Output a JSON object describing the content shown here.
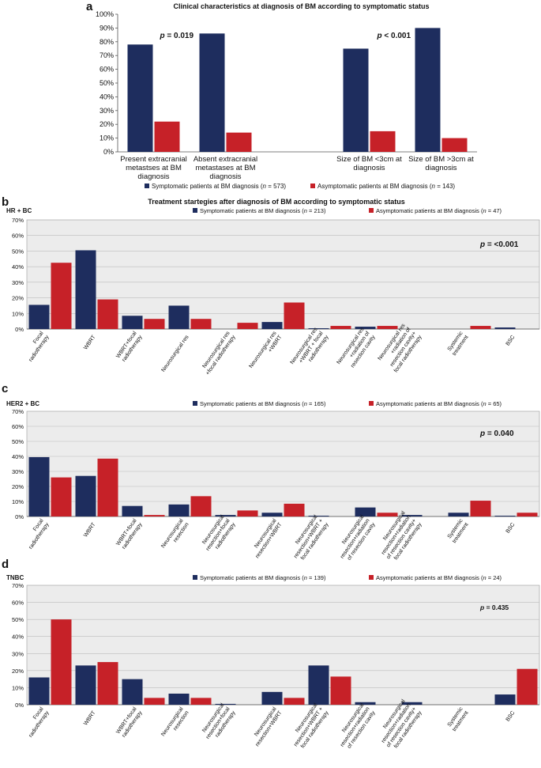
{
  "colors": {
    "symptomatic": "#1e2d5e",
    "asymptomatic": "#c62128",
    "plot_bg": "#ececec",
    "grid": "#bdbdbd"
  },
  "chart_data": [
    {
      "panel": "a",
      "type": "bar",
      "title": "Clinical characteristics at diagnosis of BM according to symptomatic status",
      "yticks": [
        "0%",
        "10%",
        "20%",
        "30%",
        "40%",
        "50%",
        "60%",
        "70%",
        "80%",
        "90%",
        "100%"
      ],
      "ylim": [
        0,
        100
      ],
      "categories": [
        [
          "Present extracranial",
          "metastses at BM",
          "diagnosis"
        ],
        [
          "Absent extracranial",
          "metastases at BM",
          "diagnosis"
        ],
        [
          ""
        ],
        [
          "Size of BM <3cm at",
          "diagnosis"
        ],
        [
          "Size of BM >3cm at",
          "diagnosis"
        ]
      ],
      "series": [
        {
          "name": "Symptomatic patients at BM diagnosis (n = 573)",
          "values": [
            78,
            86,
            null,
            75,
            90
          ]
        },
        {
          "name": "Asymptomatic patients at BM diagnosis (n = 143)",
          "values": [
            22,
            14,
            null,
            15,
            10
          ]
        }
      ],
      "annotations": [
        {
          "p": "p",
          "rest": " = 0.019",
          "near_category": 0
        },
        {
          "p": "p",
          "rest": " < 0.001",
          "near_category": 3
        }
      ],
      "legend": {
        "symptomatic": "Symptomatic patients at BM diagnosis (n = 573)",
        "asymptomatic": "Asymptomatic patients at BM diagnosis (n = 143)"
      }
    },
    {
      "panel": "b",
      "type": "bar",
      "title": "Treatment startegies after diagnosis of BM according to symptomatic status",
      "subtype": "HR + BC",
      "yticks": [
        "0%",
        "10%",
        "20%",
        "30%",
        "40%",
        "50%",
        "60%",
        "70%"
      ],
      "ylim": [
        0,
        70
      ],
      "p_value": "p = <0.001",
      "categories": [
        [
          "Focal",
          "radiotherapy"
        ],
        [
          "WBRT"
        ],
        [
          "WBRT+focal",
          "radiotherapy"
        ],
        [
          "Neurosurgical res"
        ],
        [
          "Neurosurgical res",
          "+focal radiotherapy"
        ],
        [
          "Neurosurgical res",
          "+WBRT"
        ],
        [
          "Neurosurgical res",
          "+WBRT + focal",
          "radiotherapy"
        ],
        [
          "Neurosurgical res",
          "+radiation of",
          "resection cavity"
        ],
        [
          "Neurosurgical res",
          "+radiation of",
          "resection cavity+",
          "focal radiotherapy"
        ],
        [
          "Systemic",
          "treatment"
        ],
        [
          "BSC"
        ]
      ],
      "series": [
        {
          "name": "Symptomatic patients at BM diagnosis (n = 213)",
          "values": [
            15.5,
            50.5,
            8.5,
            15.0,
            0,
            4.5,
            0.5,
            1.5,
            0,
            0,
            1.0
          ]
        },
        {
          "name": "Asymptomatic patients at BM diagnosis (n = 47)",
          "values": [
            42.5,
            19.0,
            6.5,
            6.5,
            4.0,
            17.0,
            2.0,
            2.0,
            0,
            2.0,
            0
          ]
        }
      ],
      "legend": {
        "symptomatic": "Symptomatic patients at BM diagnosis (n = 213)",
        "asymptomatic": "Asymptomatic patients at BM diagnosis (n = 47)"
      }
    },
    {
      "panel": "c",
      "type": "bar",
      "subtype": "HER2 + BC",
      "yticks": [
        "0%",
        "10%",
        "20%",
        "30%",
        "40%",
        "50%",
        "60%",
        "70%"
      ],
      "ylim": [
        0,
        70
      ],
      "p_value": "p = 0.040",
      "categories": [
        [
          "Focal",
          "radiotherapy"
        ],
        [
          "WBRT"
        ],
        [
          "WBRT+focal",
          "radiotherapy"
        ],
        [
          "Neurosurgical",
          "resection"
        ],
        [
          "Neurosurgical",
          "resection+focal",
          "radiotherapy"
        ],
        [
          "Neurosurgical",
          "resection+WBRT"
        ],
        [
          "Neurosurgical",
          "resection+WBRT +",
          "focal radiotherapy"
        ],
        [
          "Neurosurgical",
          "resection+radiation",
          "of resection cavity"
        ],
        [
          "Neurosurgical",
          "resection+radiation",
          "of resection cavity+",
          "focal radiotherapy"
        ],
        [
          "Systemic",
          "treatment"
        ],
        [
          "BSC"
        ]
      ],
      "series": [
        {
          "name": "Symptomatic patients at BM diagnosis (n = 165)",
          "values": [
            39.5,
            27.0,
            7.0,
            8.0,
            1.0,
            2.5,
            0.5,
            6.0,
            1.0,
            2.5,
            0.5
          ]
        },
        {
          "name": "Asymptomatic patients at BM diagnosis (n = 65)",
          "values": [
            26.0,
            38.5,
            1.0,
            13.5,
            4.0,
            8.5,
            0,
            2.5,
            0,
            10.5,
            2.5
          ]
        }
      ],
      "legend": {
        "symptomatic": "Symptomatic patients at BM diagnosis (n = 165)",
        "asymptomatic": "Asymptomatic patients at BM diagnosis (n = 65)"
      }
    },
    {
      "panel": "d",
      "type": "bar",
      "subtype": "TNBC",
      "yticks": [
        "0%",
        "10%",
        "20%",
        "30%",
        "40%",
        "50%",
        "60%",
        "70%"
      ],
      "ylim": [
        0,
        70
      ],
      "p_value": "p = 0.435",
      "categories": [
        [
          "Focal",
          "radiotherapy"
        ],
        [
          "WBRT"
        ],
        [
          "WBRT+focal",
          "radiotherapy"
        ],
        [
          "Neurosurgical",
          "resection"
        ],
        [
          "Neurosurgical",
          "resection+focal",
          "radiotherapy"
        ],
        [
          "Neurosurgical",
          "resection+WBRT"
        ],
        [
          "Neurosurgical",
          "resection+WBRT +",
          "focal radiotherapy"
        ],
        [
          "Neurosurgical",
          "resection+radiation",
          "of resection cavity"
        ],
        [
          "Neurosurgical",
          "resection+radiation",
          "of resection cavity+",
          "focal radiotherapy"
        ],
        [
          "Systemic",
          "treatment"
        ],
        [
          "BSC"
        ]
      ],
      "series": [
        {
          "name": "Symptomatic patients at BM diagnosis (n = 139)",
          "values": [
            16.0,
            23.0,
            15.0,
            6.5,
            0.5,
            7.5,
            23.0,
            1.5,
            1.5,
            0,
            6.0
          ]
        },
        {
          "name": "Asymptomatic patients at BM diagnosis (n = 24)",
          "values": [
            50.0,
            25.0,
            4.0,
            4.0,
            0,
            4.0,
            16.5,
            0,
            0,
            0,
            21.0
          ]
        }
      ],
      "legend": {
        "symptomatic": "Symptomatic patients at BM diagnosis (n = 139)",
        "asymptomatic": "Asymptomatic patients at BM diagnosis (n = 24)"
      }
    }
  ]
}
